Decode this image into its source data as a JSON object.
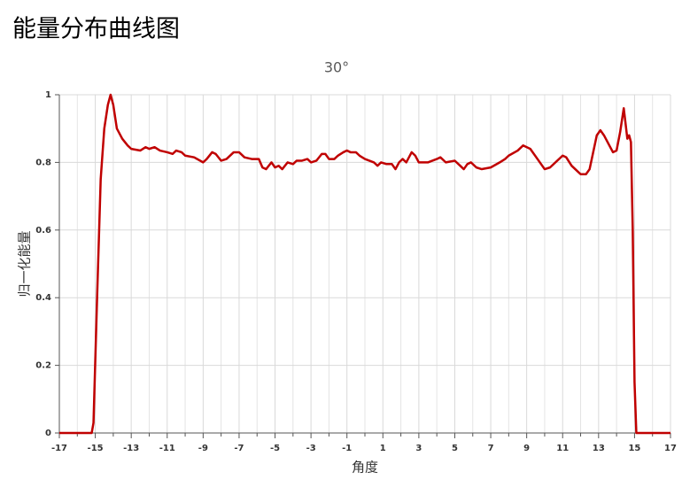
{
  "chart_data": {
    "type": "line",
    "title": "能量分布曲线图",
    "subtitle": "30°",
    "xlabel": "角度",
    "ylabel": "归一化能量",
    "color": "#c00000",
    "x": [
      -17,
      -15.2,
      -15.1,
      -14.9,
      -14.7,
      -14.5,
      -14.3,
      -14.15,
      -14.0,
      -13.8,
      -13.5,
      -13.2,
      -13,
      -12.5,
      -12.2,
      -12,
      -11.7,
      -11.4,
      -11,
      -10.7,
      -10.5,
      -10.2,
      -10,
      -9.5,
      -9,
      -8.8,
      -8.5,
      -8.3,
      -8,
      -7.7,
      -7.3,
      -7,
      -6.7,
      -6.3,
      -5.9,
      -5.7,
      -5.5,
      -5.2,
      -5,
      -4.8,
      -4.6,
      -4.3,
      -4,
      -3.8,
      -3.5,
      -3.2,
      -3,
      -2.7,
      -2.4,
      -2.2,
      -2,
      -1.7,
      -1.5,
      -1.2,
      -1,
      -0.8,
      -0.5,
      -0.3,
      0,
      0.5,
      0.7,
      0.9,
      1.2,
      1.5,
      1.7,
      1.9,
      2.1,
      2.3,
      2.6,
      2.8,
      3,
      3.5,
      4,
      4.2,
      4.5,
      5,
      5.3,
      5.5,
      5.7,
      5.9,
      6.2,
      6.5,
      7,
      7.5,
      7.8,
      8,
      8.5,
      8.8,
      9.2,
      9.6,
      10,
      10.3,
      10.6,
      11,
      11.2,
      11.5,
      11.8,
      12,
      12.3,
      12.5,
      12.7,
      12.9,
      13.1,
      13.3,
      13.6,
      13.8,
      14,
      14.2,
      14.4,
      14.6,
      14.7,
      14.8,
      14.9,
      15,
      15.1,
      17
    ],
    "values": [
      0,
      0,
      0.03,
      0.4,
      0.75,
      0.9,
      0.97,
      1.0,
      0.97,
      0.9,
      0.87,
      0.85,
      0.84,
      0.835,
      0.845,
      0.84,
      0.845,
      0.835,
      0.83,
      0.825,
      0.835,
      0.83,
      0.82,
      0.815,
      0.8,
      0.81,
      0.83,
      0.825,
      0.805,
      0.81,
      0.83,
      0.83,
      0.815,
      0.81,
      0.81,
      0.785,
      0.78,
      0.8,
      0.785,
      0.79,
      0.78,
      0.8,
      0.795,
      0.805,
      0.805,
      0.81,
      0.8,
      0.805,
      0.825,
      0.825,
      0.81,
      0.81,
      0.82,
      0.83,
      0.835,
      0.83,
      0.83,
      0.82,
      0.81,
      0.8,
      0.79,
      0.8,
      0.795,
      0.795,
      0.78,
      0.8,
      0.81,
      0.8,
      0.83,
      0.82,
      0.8,
      0.8,
      0.81,
      0.815,
      0.8,
      0.805,
      0.79,
      0.78,
      0.795,
      0.8,
      0.785,
      0.78,
      0.785,
      0.8,
      0.81,
      0.82,
      0.835,
      0.85,
      0.84,
      0.81,
      0.78,
      0.785,
      0.8,
      0.82,
      0.815,
      0.79,
      0.775,
      0.765,
      0.765,
      0.78,
      0.83,
      0.88,
      0.895,
      0.88,
      0.85,
      0.83,
      0.835,
      0.89,
      0.96,
      0.87,
      0.88,
      0.86,
      0.6,
      0.15,
      0,
      0
    ],
    "xlim": [
      -17,
      17
    ],
    "xticks": [
      -17,
      -15,
      -13,
      -11,
      -9,
      -7,
      -5,
      -3,
      -1,
      1,
      3,
      5,
      7,
      9,
      11,
      13,
      15,
      17
    ],
    "xminor": [
      -16,
      -14,
      -12,
      -10,
      -8,
      -6,
      -4,
      -2,
      0,
      2,
      4,
      6,
      8,
      10,
      12,
      14,
      16
    ],
    "ylim": [
      0,
      1
    ],
    "yticks": [
      0,
      0.2,
      0.4,
      0.6,
      0.8,
      1
    ],
    "grid": true
  }
}
